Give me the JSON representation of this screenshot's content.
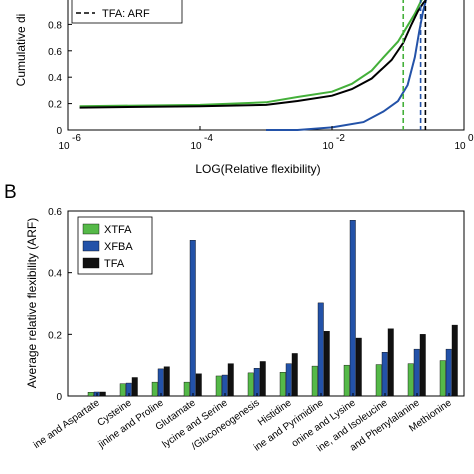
{
  "chart_data": [
    {
      "type": "line",
      "xlabel": "LOG(Relative flexibility)",
      "ylabel": "Cumulative di",
      "xscale": "log",
      "xlim": [
        1e-06,
        1
      ],
      "ylim": [
        0,
        1
      ],
      "x_tick_labels": [
        {
          "base": "10",
          "exp": "-6"
        },
        {
          "base": "10",
          "exp": "-4"
        },
        {
          "base": "10",
          "exp": "-2"
        },
        {
          "base": "10",
          "exp": "0"
        }
      ],
      "y_tick_labels": [
        "0",
        "0.2",
        "0.4",
        "0.6",
        "0.8"
      ],
      "legend": [
        {
          "label": "TFA: ARF",
          "style": "dashed",
          "color": "#000000"
        }
      ],
      "series": [
        {
          "color": "#44b03a",
          "x": [
            1.5e-06,
            0.0001,
            0.001,
            0.003,
            0.01,
            0.02,
            0.04,
            0.06,
            0.1,
            0.14,
            0.18,
            0.21,
            0.23,
            0.25,
            0.27,
            0.3
          ],
          "y": [
            0.18,
            0.19,
            0.21,
            0.25,
            0.29,
            0.35,
            0.45,
            0.55,
            0.67,
            0.79,
            0.88,
            0.95,
            0.99,
            1.0,
            1.0,
            1.0
          ]
        },
        {
          "color": "#000000",
          "x": [
            1.5e-06,
            0.0001,
            0.001,
            0.003,
            0.01,
            0.02,
            0.04,
            0.08,
            0.12,
            0.16,
            0.2,
            0.24,
            0.27,
            0.3
          ],
          "y": [
            0.17,
            0.18,
            0.19,
            0.22,
            0.26,
            0.31,
            0.39,
            0.53,
            0.66,
            0.8,
            0.9,
            0.96,
            0.99,
            1.0
          ]
        },
        {
          "color": "#2352a8",
          "x": [
            0.001,
            0.003,
            0.01,
            0.03,
            0.06,
            0.1,
            0.14,
            0.18,
            0.21,
            0.24,
            0.27
          ],
          "y": [
            0.0,
            0.0,
            0.02,
            0.06,
            0.14,
            0.22,
            0.34,
            0.55,
            0.75,
            0.9,
            1.0
          ]
        }
      ],
      "vlines": [
        {
          "x": 0.12,
          "color": "#44b03a"
        },
        {
          "x": 0.22,
          "color": "#2352a8"
        },
        {
          "x": 0.26,
          "color": "#000000"
        }
      ]
    },
    {
      "type": "bar",
      "panel_label": "B",
      "ylabel": "Average relative flexibility (ARF)",
      "ylim": [
        0,
        0.6
      ],
      "y_tick_labels": [
        "0",
        "0.2",
        "0.4",
        "0.6"
      ],
      "categories": [
        "ine and Aspartate",
        "Cysteine",
        "jinine and Proline",
        "Glutamate",
        "lycine and Serine",
        "/Gluconeogenesis",
        "Histidine",
        "ine and Pyrimidine",
        "onine and Lysine",
        "ine, and Isoleucine",
        "and Phenylalanine",
        "Methionine"
      ],
      "series": [
        {
          "name": "XTFA",
          "color": "#55b948",
          "values": [
            0.012,
            0.04,
            0.045,
            0.045,
            0.065,
            0.075,
            0.077,
            0.097,
            0.1,
            0.102,
            0.105,
            0.115
          ]
        },
        {
          "name": "XFBA",
          "color": "#2352a8",
          "values": [
            0.013,
            0.042,
            0.088,
            0.505,
            0.068,
            0.09,
            0.105,
            0.302,
            0.57,
            0.142,
            0.152,
            0.152
          ]
        },
        {
          "name": "TFA",
          "color": "#111111",
          "values": [
            0.013,
            0.06,
            0.095,
            0.072,
            0.105,
            0.112,
            0.138,
            0.21,
            0.188,
            0.218,
            0.2,
            0.23
          ]
        }
      ]
    }
  ]
}
